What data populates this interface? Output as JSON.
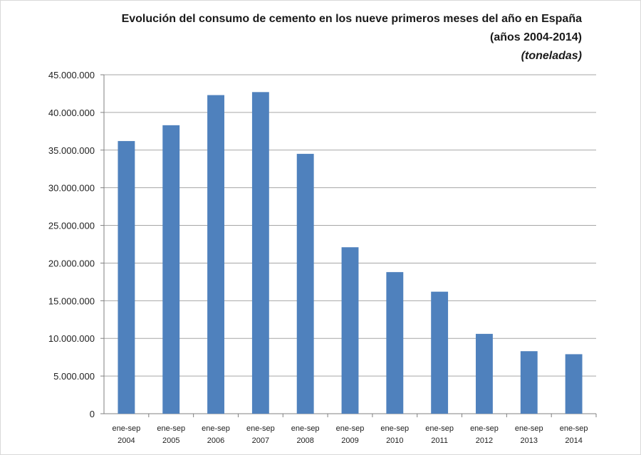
{
  "chart_data": {
    "type": "bar",
    "title_lines": [
      "Evolución del consumo de cemento en los nueve primeros meses del año en España",
      "(años 2004-2014)",
      "(toneladas)"
    ],
    "categories": [
      [
        "ene-sep",
        "2004"
      ],
      [
        "ene-sep",
        "2005"
      ],
      [
        "ene-sep",
        "2006"
      ],
      [
        "ene-sep",
        "2007"
      ],
      [
        "ene-sep",
        "2008"
      ],
      [
        "ene-sep",
        "2009"
      ],
      [
        "ene-sep",
        "2010"
      ],
      [
        "ene-sep",
        "2011"
      ],
      [
        "ene-sep",
        "2012"
      ],
      [
        "ene-sep",
        "2013"
      ],
      [
        "ene-sep",
        "2014"
      ]
    ],
    "values": [
      36200000,
      38300000,
      42300000,
      42700000,
      34500000,
      22100000,
      18800000,
      16200000,
      10600000,
      8300000,
      7900000
    ],
    "ylim": [
      0,
      45000000
    ],
    "yticks": [
      0,
      5000000,
      10000000,
      15000000,
      20000000,
      25000000,
      30000000,
      35000000,
      40000000,
      45000000
    ],
    "ytick_labels": [
      "0",
      "5.000.000",
      "10.000.000",
      "15.000.000",
      "20.000.000",
      "25.000.000",
      "30.000.000",
      "35.000.000",
      "40.000.000",
      "45.000.000"
    ],
    "grid": true,
    "legend": false,
    "colors": {
      "bar": "#4f81bd",
      "grid": "#a6a6a6",
      "axis": "#808080"
    }
  }
}
